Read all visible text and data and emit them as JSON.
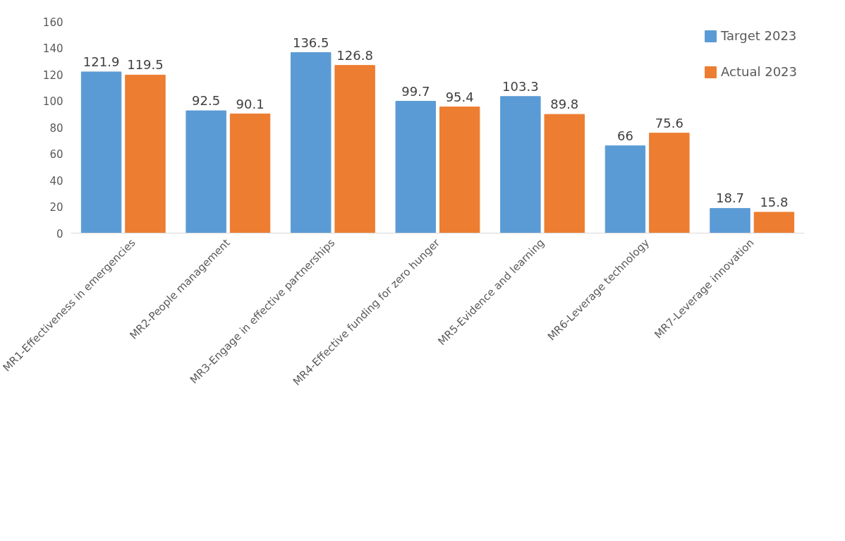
{
  "chart_data": {
    "type": "bar",
    "categories": [
      "MR1-Effectiveness in emergencies",
      "MR2-People management",
      "MR3-Engage in effective partnerships",
      "MR4-Effective funding for zero hunger",
      "MR5-Evidence and learning",
      "MR6-Leverage technology",
      "MR7-Leverage innovation"
    ],
    "series": [
      {
        "name": "Target 2023",
        "color": "#5b9bd5",
        "values": [
          121.9,
          92.5,
          136.5,
          99.7,
          103.3,
          66,
          18.7
        ]
      },
      {
        "name": "Actual 2023",
        "color": "#ed7d31",
        "values": [
          119.5,
          90.1,
          126.8,
          95.4,
          89.8,
          75.6,
          15.8
        ]
      }
    ],
    "ylim": [
      0,
      160
    ],
    "yticks": [
      0,
      20,
      40,
      60,
      80,
      100,
      120,
      140,
      160
    ],
    "grid": false,
    "legend": "top right",
    "data_labels": true
  }
}
